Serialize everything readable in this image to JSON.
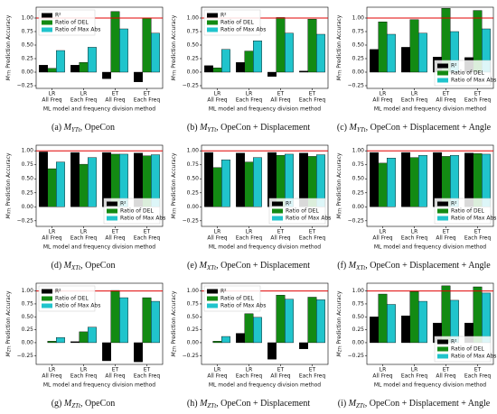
{
  "chart_data": [
    {
      "type": "bar",
      "caption": {
        "label": "(a)",
        "symbol": "M",
        "subscript": "YTt",
        "text": ", OpeCon"
      },
      "y_label": {
        "symbol": "M",
        "subscript": "YTt",
        "text": " Prediction Accuracy"
      },
      "x_label": "ML model and frequency division method",
      "categories": [
        [
          "LR",
          "All Freq"
        ],
        [
          "LR",
          "Each Freq"
        ],
        [
          "ET",
          "All Freq"
        ],
        [
          "ET",
          "Each Freq"
        ]
      ],
      "series": [
        {
          "name": "R²",
          "color": "#000000",
          "values": [
            0.13,
            0.13,
            -0.12,
            -0.18
          ]
        },
        {
          "name": "Ratio of DEL",
          "color": "#138a13",
          "values": [
            0.07,
            0.18,
            1.12,
            1.0
          ]
        },
        {
          "name": "Ratio of Max Abs",
          "color": "#20c4cc",
          "values": [
            0.4,
            0.46,
            0.8,
            0.72
          ]
        }
      ],
      "ylim": [
        -0.3,
        1.2
      ],
      "yticks": [
        {
          "value": -0.25,
          "label": "−0.25"
        },
        {
          "value": 0,
          "label": "0.00"
        },
        {
          "value": 0.25,
          "label": "0.25"
        },
        {
          "value": 0.5,
          "label": "0.50"
        },
        {
          "value": 0.75,
          "label": "0.75"
        },
        {
          "value": 1,
          "label": "1.00"
        }
      ],
      "reference_line": 1,
      "reference_color": "#e00000",
      "legend": "upper left"
    },
    {
      "type": "bar",
      "caption": {
        "label": "(b)",
        "symbol": "M",
        "subscript": "YTt",
        "text": ", OpeCon + Displacement"
      },
      "y_label": {
        "symbol": "M",
        "subscript": "YTt",
        "text": " Prediction Accuracy"
      },
      "x_label": "ML model and frequency division method",
      "categories": [
        [
          "LR",
          "All Freq"
        ],
        [
          "LR",
          "Each Freq"
        ],
        [
          "ET",
          "All Freq"
        ],
        [
          "ET",
          "Each Freq"
        ]
      ],
      "series": [
        {
          "name": "R²",
          "color": "#000000",
          "values": [
            0.12,
            0.18,
            -0.08,
            0.02
          ]
        },
        {
          "name": "Ratio of DEL",
          "color": "#138a13",
          "values": [
            0.08,
            0.39,
            1.01,
            0.98
          ]
        },
        {
          "name": "Ratio of Max Abs",
          "color": "#20c4cc",
          "values": [
            0.42,
            0.58,
            0.72,
            0.7
          ]
        }
      ],
      "ylim": [
        -0.3,
        1.2
      ],
      "yticks": [
        {
          "value": -0.25,
          "label": "−0.25"
        },
        {
          "value": 0,
          "label": "0.00"
        },
        {
          "value": 0.25,
          "label": "0.25"
        },
        {
          "value": 0.5,
          "label": "0.50"
        },
        {
          "value": 0.75,
          "label": "0.75"
        },
        {
          "value": 1,
          "label": "1.00"
        }
      ],
      "reference_line": 1,
      "reference_color": "#e00000",
      "legend": "upper left"
    },
    {
      "type": "bar",
      "caption": {
        "label": "(c)",
        "symbol": "M",
        "subscript": "YTt",
        "text": ", OpeCon + Displacement + Angle"
      },
      "y_label": {
        "symbol": "M",
        "subscript": "YTt",
        "text": " Prediction Accuracy"
      },
      "x_label": "ML model and frequency division method",
      "categories": [
        [
          "LR",
          "All Freq"
        ],
        [
          "LR",
          "Each Freq"
        ],
        [
          "ET",
          "All Freq"
        ],
        [
          "ET",
          "Each Freq"
        ]
      ],
      "series": [
        {
          "name": "R²",
          "color": "#000000",
          "values": [
            0.42,
            0.46,
            0.28,
            0.27
          ]
        },
        {
          "name": "Ratio of DEL",
          "color": "#138a13",
          "values": [
            0.93,
            0.97,
            1.18,
            1.14
          ]
        },
        {
          "name": "Ratio of Max Abs",
          "color": "#20c4cc",
          "values": [
            0.7,
            0.72,
            0.75,
            0.8
          ]
        }
      ],
      "ylim": [
        -0.3,
        1.2
      ],
      "yticks": [
        {
          "value": -0.25,
          "label": "−0.25"
        },
        {
          "value": 0,
          "label": "0.00"
        },
        {
          "value": 0.25,
          "label": "0.25"
        },
        {
          "value": 0.5,
          "label": "0.50"
        },
        {
          "value": 0.75,
          "label": "0.75"
        },
        {
          "value": 1,
          "label": "1.00"
        }
      ],
      "reference_line": 1,
      "reference_color": "#e00000",
      "legend": "lower right"
    },
    {
      "type": "bar",
      "caption": {
        "label": "(d)",
        "symbol": "M",
        "subscript": "XTt",
        "text": ", OpeCon"
      },
      "y_label": {
        "symbol": "M",
        "subscript": "XTt",
        "text": " Prediction Accuracy"
      },
      "x_label": "ML model and frequency division method",
      "categories": [
        [
          "LR",
          "All Freq"
        ],
        [
          "LR",
          "Each Freq"
        ],
        [
          "ET",
          "All Freq"
        ],
        [
          "ET",
          "Each Freq"
        ]
      ],
      "series": [
        {
          "name": "R²",
          "color": "#000000",
          "values": [
            0.98,
            0.97,
            0.97,
            0.96
          ]
        },
        {
          "name": "Ratio of DEL",
          "color": "#138a13",
          "values": [
            0.68,
            0.76,
            0.94,
            0.91
          ]
        },
        {
          "name": "Ratio of Max Abs",
          "color": "#20c4cc",
          "values": [
            0.8,
            0.88,
            0.94,
            0.93
          ]
        }
      ],
      "ylim": [
        -0.35,
        1.1
      ],
      "yticks": [
        {
          "value": -0.25,
          "label": "−0.25"
        },
        {
          "value": 0,
          "label": "0.00"
        },
        {
          "value": 0.25,
          "label": "0.25"
        },
        {
          "value": 0.5,
          "label": "0.50"
        },
        {
          "value": 0.75,
          "label": "0.75"
        },
        {
          "value": 1,
          "label": "1.00"
        }
      ],
      "reference_line": 1,
      "reference_color": "#e00000",
      "legend": "lower right"
    },
    {
      "type": "bar",
      "caption": {
        "label": "(e)",
        "symbol": "M",
        "subscript": "XTt",
        "text": ", OpeCon + Displacement"
      },
      "y_label": {
        "symbol": "M",
        "subscript": "XTt",
        "text": " Prediction Accuracy"
      },
      "x_label": "ML model and frequency division method",
      "categories": [
        [
          "LR",
          "All Freq"
        ],
        [
          "LR",
          "Each Freq"
        ],
        [
          "ET",
          "All Freq"
        ],
        [
          "ET",
          "Each Freq"
        ]
      ],
      "series": [
        {
          "name": "R²",
          "color": "#000000",
          "values": [
            0.97,
            0.96,
            0.97,
            0.96
          ]
        },
        {
          "name": "Ratio of DEL",
          "color": "#138a13",
          "values": [
            0.7,
            0.8,
            0.92,
            0.9
          ]
        },
        {
          "name": "Ratio of Max Abs",
          "color": "#20c4cc",
          "values": [
            0.84,
            0.88,
            0.94,
            0.93
          ]
        }
      ],
      "ylim": [
        -0.35,
        1.1
      ],
      "yticks": [
        {
          "value": -0.25,
          "label": "−0.25"
        },
        {
          "value": 0,
          "label": "0.00"
        },
        {
          "value": 0.25,
          "label": "0.25"
        },
        {
          "value": 0.5,
          "label": "0.50"
        },
        {
          "value": 0.75,
          "label": "0.75"
        },
        {
          "value": 1,
          "label": "1.00"
        }
      ],
      "reference_line": 1,
      "reference_color": "#e00000",
      "legend": "lower right"
    },
    {
      "type": "bar",
      "caption": {
        "label": "(f)",
        "symbol": "M",
        "subscript": "XTt",
        "text": ", OpeCon + Displacement + Angle"
      },
      "y_label": {
        "symbol": "M",
        "subscript": "XTt",
        "text": " Prediction Accuracy"
      },
      "x_label": "ML model and frequency division method",
      "categories": [
        [
          "LR",
          "All Freq"
        ],
        [
          "LR",
          "Each Freq"
        ],
        [
          "ET",
          "All Freq"
        ],
        [
          "ET",
          "Each Freq"
        ]
      ],
      "series": [
        {
          "name": "R²",
          "color": "#000000",
          "values": [
            0.97,
            0.97,
            0.97,
            0.96
          ]
        },
        {
          "name": "Ratio of DEL",
          "color": "#138a13",
          "values": [
            0.78,
            0.88,
            0.9,
            0.95
          ]
        },
        {
          "name": "Ratio of Max Abs",
          "color": "#20c4cc",
          "values": [
            0.87,
            0.92,
            0.92,
            0.94
          ]
        }
      ],
      "ylim": [
        -0.35,
        1.1
      ],
      "yticks": [
        {
          "value": -0.25,
          "label": "−0.25"
        },
        {
          "value": 0,
          "label": "0.00"
        },
        {
          "value": 0.25,
          "label": "0.25"
        },
        {
          "value": 0.5,
          "label": "0.50"
        },
        {
          "value": 0.75,
          "label": "0.75"
        },
        {
          "value": 1,
          "label": "1.00"
        }
      ],
      "reference_line": 1,
      "reference_color": "#e00000",
      "legend": "lower right"
    },
    {
      "type": "bar",
      "caption": {
        "label": "(g)",
        "symbol": "M",
        "subscript": "ZTt",
        "text": ", OpeCon"
      },
      "y_label": {
        "symbol": "M",
        "subscript": "ZTt",
        "text": " Prediction Accuracy"
      },
      "x_label": "ML model and frequency division method",
      "categories": [
        [
          "LR",
          "All Freq"
        ],
        [
          "LR",
          "Each Freq"
        ],
        [
          "ET",
          "All Freq"
        ],
        [
          "ET",
          "Each Freq"
        ]
      ],
      "series": [
        {
          "name": "R²",
          "color": "#000000",
          "values": [
            0.0,
            0.02,
            -0.35,
            -0.37
          ]
        },
        {
          "name": "Ratio of DEL",
          "color": "#138a13",
          "values": [
            0.03,
            0.21,
            1.01,
            0.87
          ]
        },
        {
          "name": "Ratio of Max Abs",
          "color": "#20c4cc",
          "values": [
            0.1,
            0.3,
            0.87,
            0.8
          ]
        }
      ],
      "ylim": [
        -0.42,
        1.15
      ],
      "yticks": [
        {
          "value": -0.25,
          "label": "−0.25"
        },
        {
          "value": 0,
          "label": "0.00"
        },
        {
          "value": 0.25,
          "label": "0.25"
        },
        {
          "value": 0.5,
          "label": "0.50"
        },
        {
          "value": 0.75,
          "label": "0.75"
        },
        {
          "value": 1,
          "label": "1.00"
        }
      ],
      "reference_line": 1,
      "reference_color": "#e00000",
      "legend": "upper left"
    },
    {
      "type": "bar",
      "caption": {
        "label": "(h)",
        "symbol": "M",
        "subscript": "ZTt",
        "text": ", OpeCon + Displacement"
      },
      "y_label": {
        "symbol": "M",
        "subscript": "ZTt",
        "text": " Prediction Accuracy"
      },
      "x_label": "ML model and frequency division method",
      "categories": [
        [
          "LR",
          "All Freq"
        ],
        [
          "LR",
          "Each Freq"
        ],
        [
          "ET",
          "All Freq"
        ],
        [
          "ET",
          "Each Freq"
        ]
      ],
      "series": [
        {
          "name": "R²",
          "color": "#000000",
          "values": [
            0.0,
            0.18,
            -0.32,
            -0.12
          ]
        },
        {
          "name": "Ratio of DEL",
          "color": "#138a13",
          "values": [
            0.03,
            0.56,
            0.92,
            0.88
          ]
        },
        {
          "name": "Ratio of Max Abs",
          "color": "#20c4cc",
          "values": [
            0.12,
            0.49,
            0.84,
            0.83
          ]
        }
      ],
      "ylim": [
        -0.42,
        1.15
      ],
      "yticks": [
        {
          "value": -0.25,
          "label": "−0.25"
        },
        {
          "value": 0,
          "label": "0.00"
        },
        {
          "value": 0.25,
          "label": "0.25"
        },
        {
          "value": 0.5,
          "label": "0.50"
        },
        {
          "value": 0.75,
          "label": "0.75"
        },
        {
          "value": 1,
          "label": "1.00"
        }
      ],
      "reference_line": 1,
      "reference_color": "#e00000",
      "legend": "upper left"
    },
    {
      "type": "bar",
      "caption": {
        "label": "(i)",
        "symbol": "M",
        "subscript": "ZTt",
        "text": ", OpeCon + Displacement + Angle"
      },
      "y_label": {
        "symbol": "M",
        "subscript": "ZTt",
        "text": " Prediction Accuracy"
      },
      "x_label": "ML model and frequency division method",
      "categories": [
        [
          "LR",
          "All Freq"
        ],
        [
          "LR",
          "Each Freq"
        ],
        [
          "ET",
          "All Freq"
        ],
        [
          "ET",
          "Each Freq"
        ]
      ],
      "series": [
        {
          "name": "R²",
          "color": "#000000",
          "values": [
            0.5,
            0.52,
            0.38,
            0.38
          ]
        },
        {
          "name": "Ratio of DEL",
          "color": "#138a13",
          "values": [
            0.94,
            0.99,
            1.1,
            1.08
          ]
        },
        {
          "name": "Ratio of Max Abs",
          "color": "#20c4cc",
          "values": [
            0.74,
            0.8,
            0.82,
            0.96
          ]
        }
      ],
      "ylim": [
        -0.42,
        1.15
      ],
      "yticks": [
        {
          "value": -0.25,
          "label": "−0.25"
        },
        {
          "value": 0,
          "label": "0.00"
        },
        {
          "value": 0.25,
          "label": "0.25"
        },
        {
          "value": 0.5,
          "label": "0.50"
        },
        {
          "value": 0.75,
          "label": "0.75"
        },
        {
          "value": 1,
          "label": "1.00"
        }
      ],
      "reference_line": 1,
      "reference_color": "#e00000",
      "legend": "lower right"
    }
  ]
}
